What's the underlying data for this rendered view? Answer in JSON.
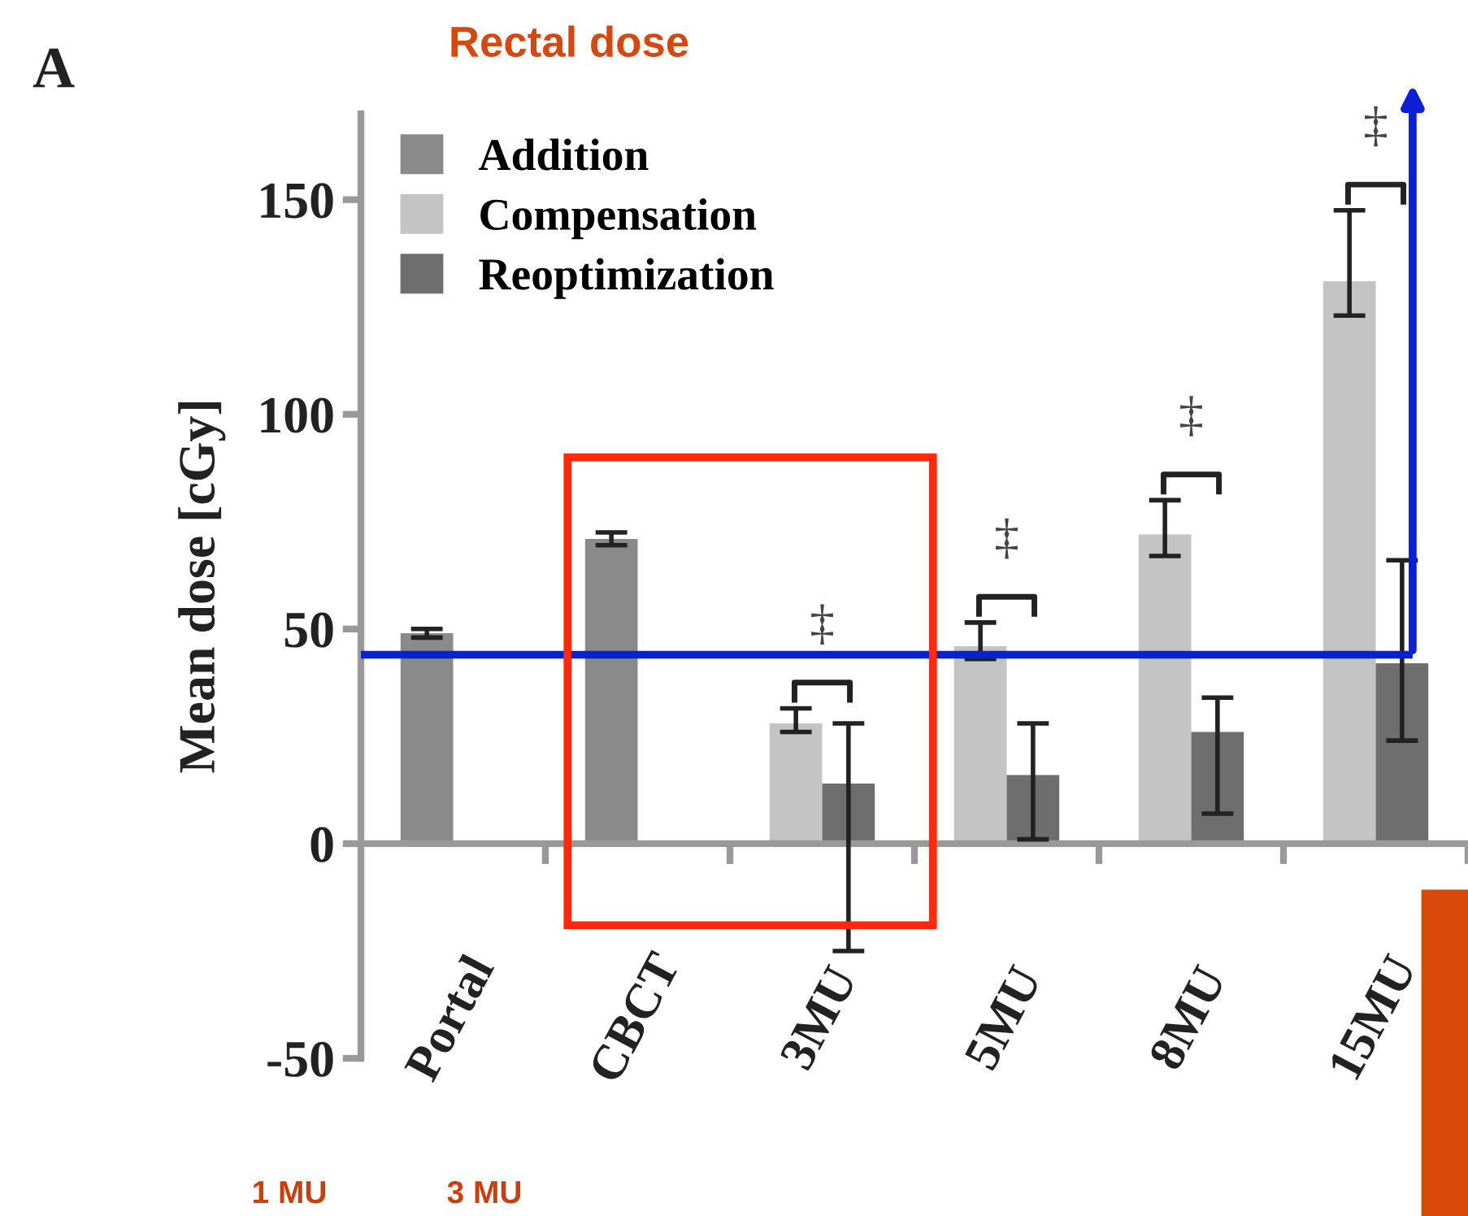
{
  "chart_data": {
    "type": "bar",
    "title": "Rectal dose",
    "ylabel": "Mean dose [cGy]",
    "categories": [
      "Portal",
      "CBCT",
      "3MU",
      "5MU",
      "8MU",
      "15MU"
    ],
    "series": [
      {
        "name": "Addition",
        "color": "#8a8a8a",
        "values": [
          49,
          71,
          null,
          null,
          null,
          null
        ],
        "errors": [
          [
            48,
            50
          ],
          [
            69.5,
            72.5
          ],
          null,
          null,
          null,
          null
        ]
      },
      {
        "name": "Compensation",
        "color": "#c4c4c4",
        "values": [
          null,
          null,
          28,
          46,
          72,
          131
        ],
        "errors": [
          null,
          null,
          [
            26,
            31.5
          ],
          [
            43,
            51.5
          ],
          [
            67,
            80
          ],
          [
            123,
            147.5
          ]
        ]
      },
      {
        "name": "Reoptimization",
        "color": "#6e6e6e",
        "values": [
          null,
          null,
          14,
          16,
          26,
          42
        ],
        "errors": [
          null,
          null,
          [
            -25,
            28
          ],
          [
            1,
            28
          ],
          [
            7,
            34
          ],
          [
            24,
            66
          ]
        ]
      }
    ],
    "ylim": [
      -50,
      170
    ],
    "yticks": [
      -50,
      0,
      50,
      100,
      150
    ],
    "grid": false,
    "legend": "top left",
    "ref_lines": [
      {
        "axis": "y",
        "value": 44,
        "color": "#0a1fd6"
      }
    ],
    "annotations": [
      "A",
      "1 MU",
      "3 MU",
      "‡",
      "‡",
      "‡",
      "‡"
    ]
  }
}
